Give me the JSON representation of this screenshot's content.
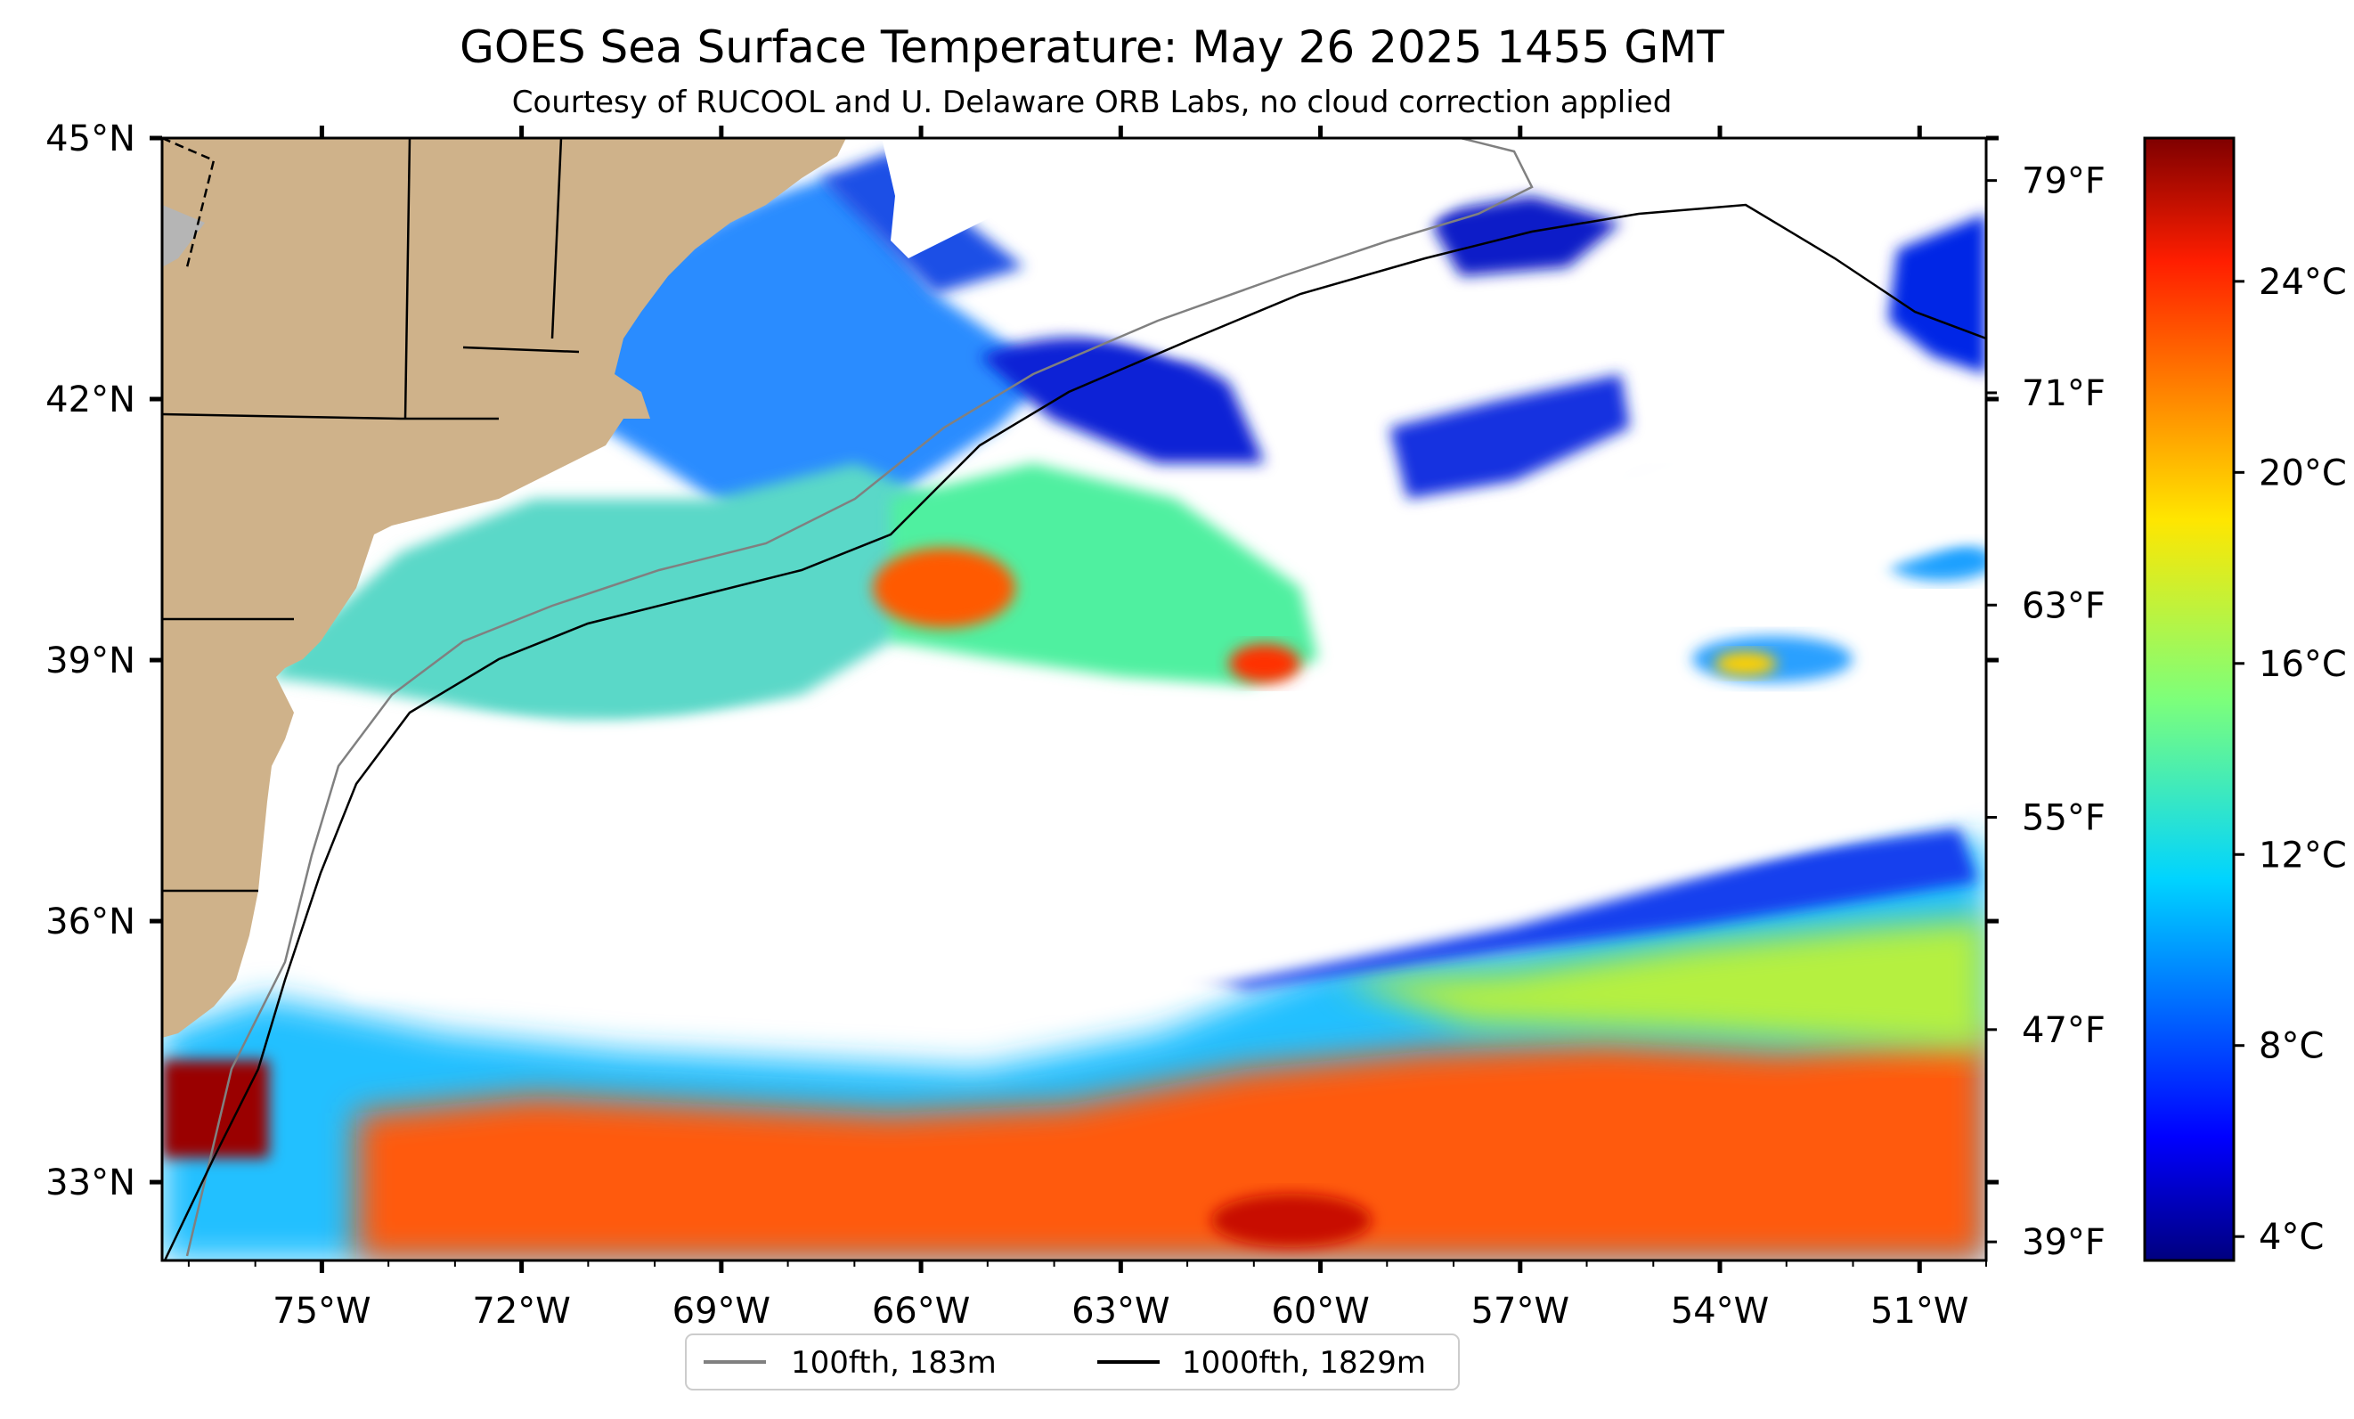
{
  "figure": {
    "title": "GOES Sea Surface Temperature: May 26 2025 1455 GMT",
    "subtitle": "Courtesy of RUCOOL and U. Delaware ORB Labs, no cloud correction applied"
  },
  "map": {
    "lon_labels": [
      "75°W",
      "72°W",
      "69°W",
      "66°W",
      "63°W",
      "60°W",
      "57°W",
      "54°W",
      "51°W"
    ],
    "lat_labels": [
      "45°N",
      "42°N",
      "39°N",
      "36°N",
      "33°N"
    ],
    "lon_range": [
      -77.4,
      -50.0
    ],
    "lat_range": [
      32.1,
      45.0
    ],
    "land_color": "#cfb28a",
    "cloud_color": "#ffffff"
  },
  "legend": {
    "items": [
      {
        "label": "100fth, 183m",
        "color": "#808080"
      },
      {
        "label": "1000fth, 1829m",
        "color": "#000000"
      }
    ]
  },
  "colorbar": {
    "celsius_labels": [
      "24°C",
      "20°C",
      "16°C",
      "12°C",
      "8°C",
      "4°C"
    ],
    "fahrenheit_labels": [
      "79°F",
      "71°F",
      "63°F",
      "55°F",
      "47°F",
      "39°F"
    ],
    "colormap": "jet",
    "range_c": [
      3.5,
      27.0
    ]
  }
}
